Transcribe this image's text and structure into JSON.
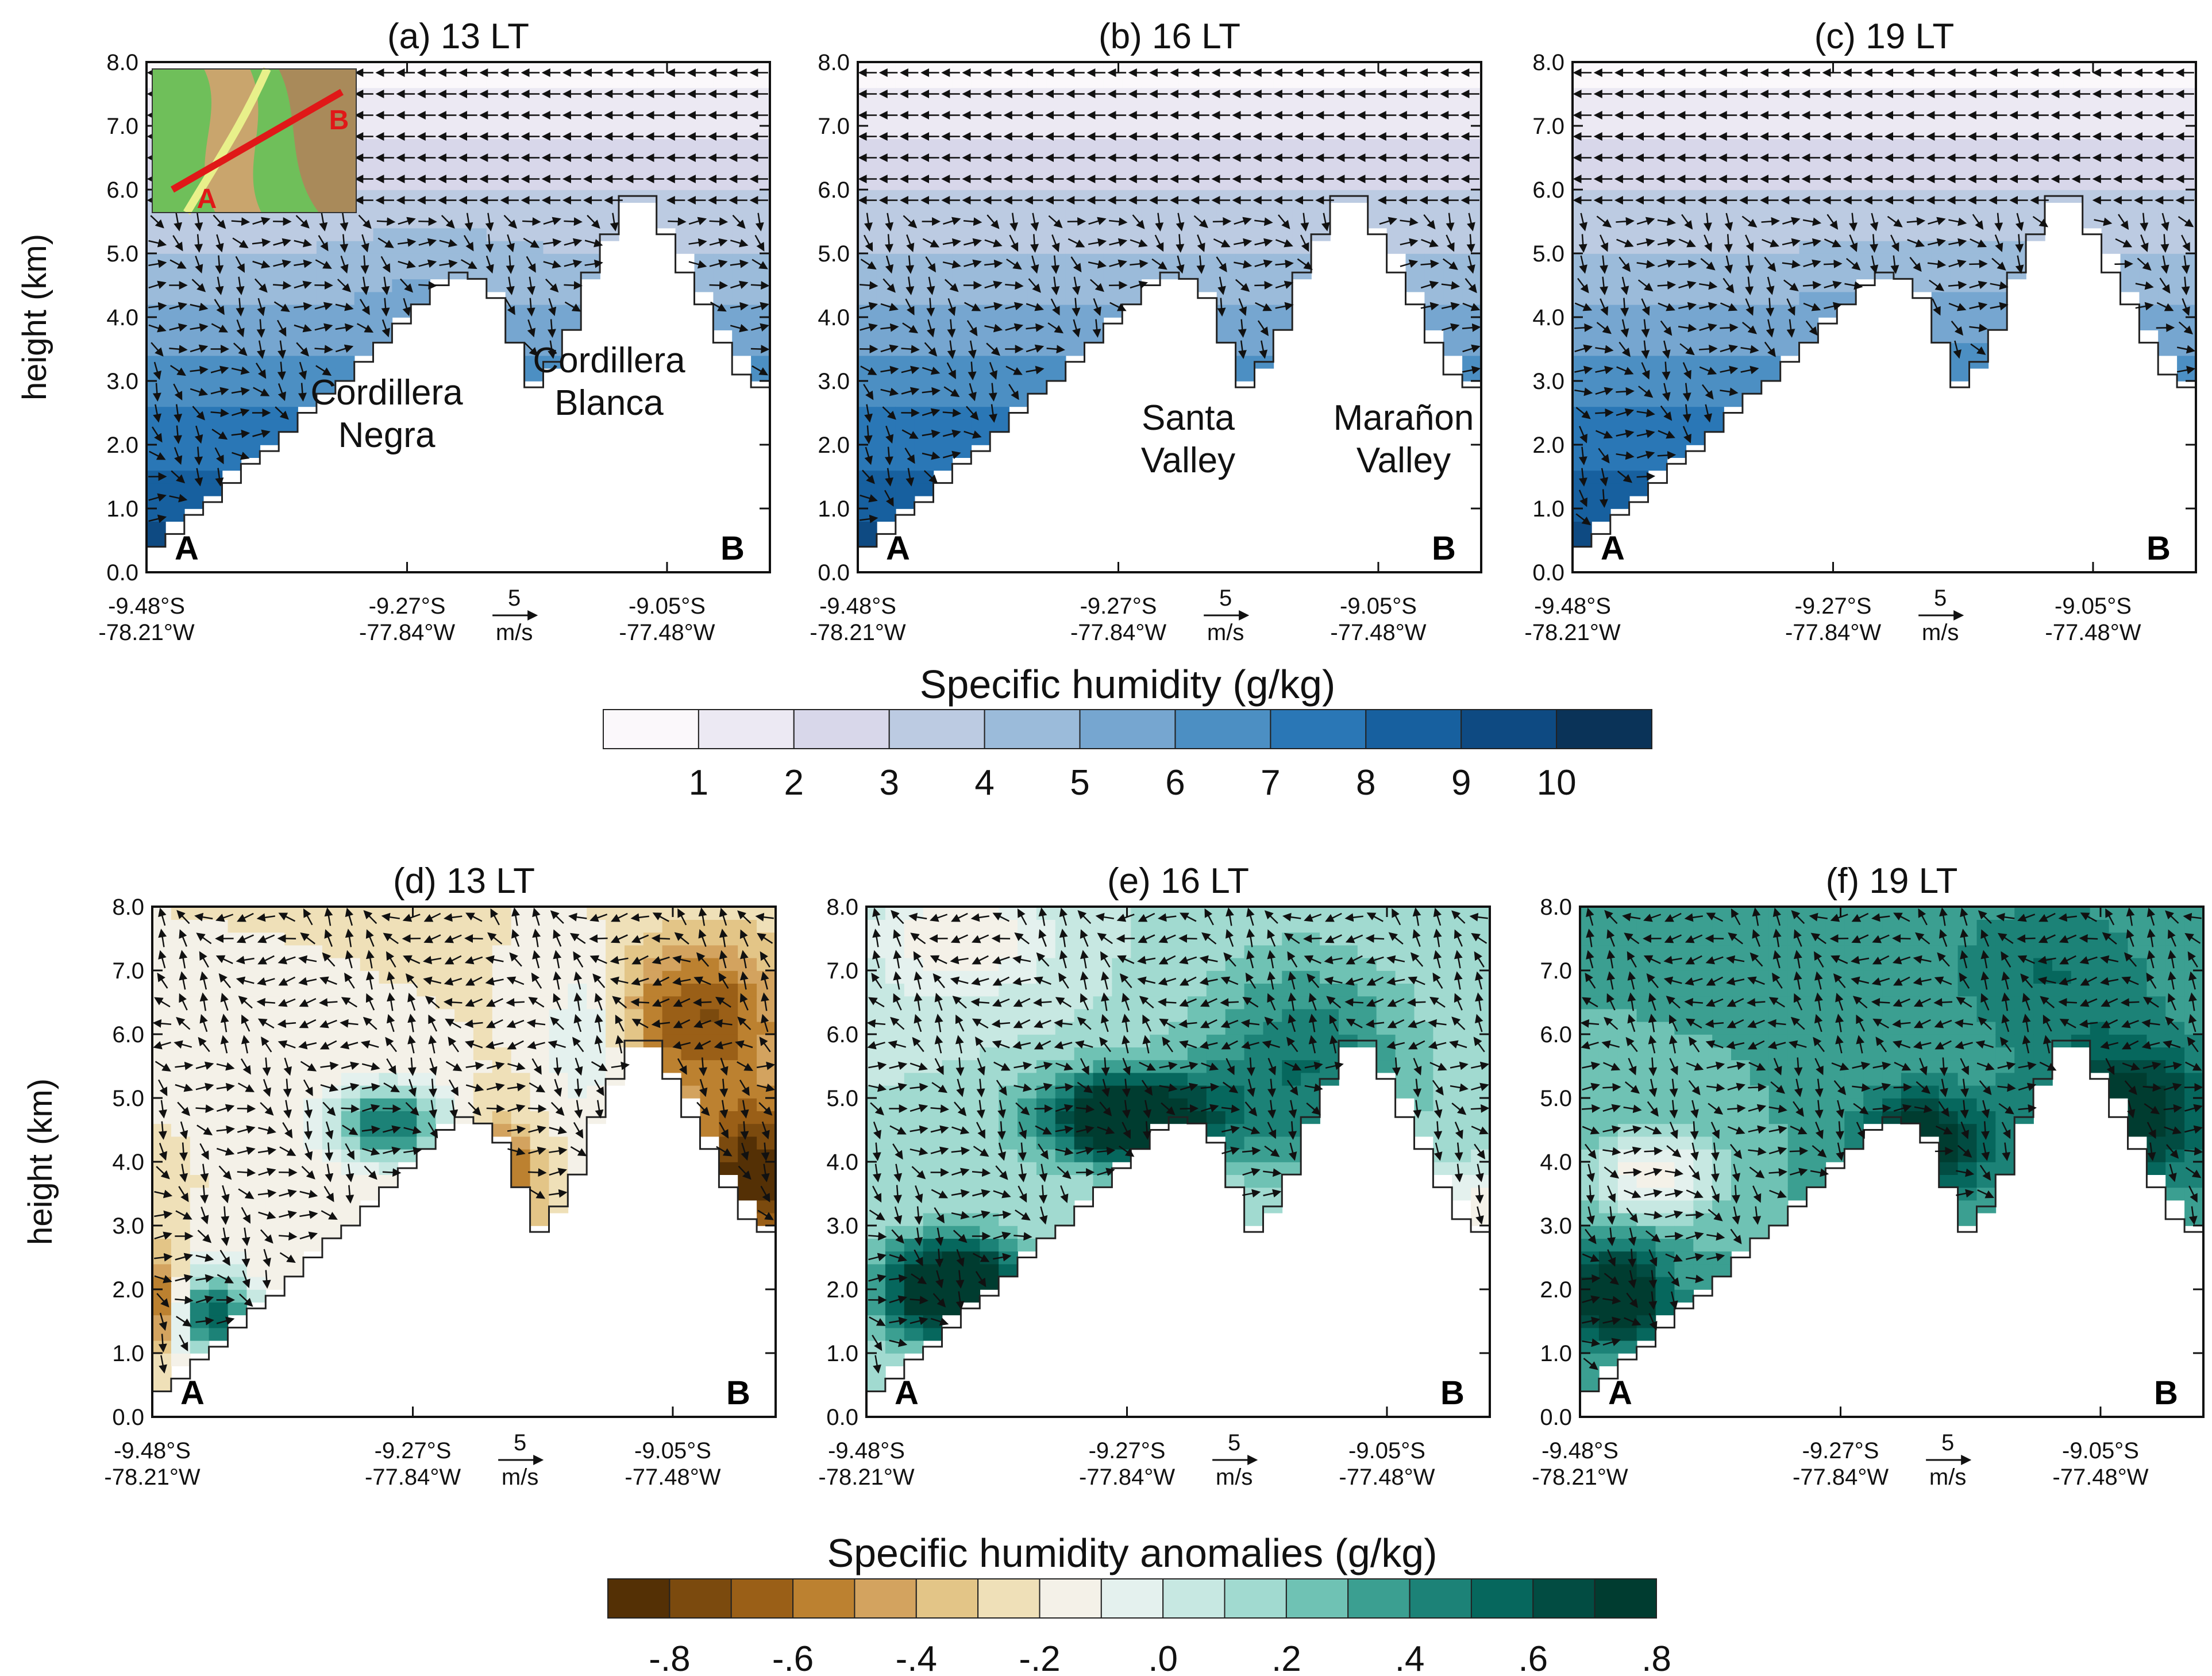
{
  "chart_data": [
    {
      "type": "heatmap",
      "panel": "a",
      "title": "(a) 13 LT",
      "ylabel": "height (km)",
      "ylim": [
        0,
        8
      ],
      "yticks": [
        "0.0",
        "1.0",
        "2.0",
        "3.0",
        "4.0",
        "5.0",
        "6.0",
        "7.0",
        "8.0"
      ],
      "xtick_labels": [
        [
          "-9.48°S",
          "-78.21°W"
        ],
        [
          "-9.27°S",
          "-77.84°W"
        ],
        [
          "-9.05°S",
          "-77.48°W"
        ]
      ],
      "vector_ref": {
        "value": "5",
        "unit": "m/s"
      },
      "end_labels": [
        "A",
        "B"
      ],
      "annotations": [
        "Cordillera",
        "Negra",
        "Cordillera",
        "Blanca"
      ],
      "variable": "Specific humidity (g/kg)"
    },
    {
      "type": "heatmap",
      "panel": "b",
      "title": "(b) 16 LT",
      "ylim": [
        0,
        8
      ],
      "yticks": [
        "0.0",
        "1.0",
        "2.0",
        "3.0",
        "4.0",
        "5.0",
        "6.0",
        "7.0",
        "8.0"
      ],
      "xtick_labels": [
        [
          "-9.48°S",
          "-78.21°W"
        ],
        [
          "-9.27°S",
          "-77.84°W"
        ],
        [
          "-9.05°S",
          "-77.48°W"
        ]
      ],
      "vector_ref": {
        "value": "5",
        "unit": "m/s"
      },
      "end_labels": [
        "A",
        "B"
      ],
      "annotations": [
        "Santa",
        "Valley",
        "Marañon",
        "Valley"
      ],
      "variable": "Specific humidity (g/kg)"
    },
    {
      "type": "heatmap",
      "panel": "c",
      "title": "(c) 19 LT",
      "ylim": [
        0,
        8
      ],
      "yticks": [
        "0.0",
        "1.0",
        "2.0",
        "3.0",
        "4.0",
        "5.0",
        "6.0",
        "7.0",
        "8.0"
      ],
      "xtick_labels": [
        [
          "-9.48°S",
          "-78.21°W"
        ],
        [
          "-9.27°S",
          "-77.84°W"
        ],
        [
          "-9.05°S",
          "-77.48°W"
        ]
      ],
      "vector_ref": {
        "value": "5",
        "unit": "m/s"
      },
      "end_labels": [
        "A",
        "B"
      ],
      "variable": "Specific humidity (g/kg)"
    },
    {
      "type": "heatmap",
      "panel": "d",
      "title": "(d) 13 LT",
      "ylabel": "height (km)",
      "ylim": [
        0,
        8
      ],
      "yticks": [
        "0.0",
        "1.0",
        "2.0",
        "3.0",
        "4.0",
        "5.0",
        "6.0",
        "7.0",
        "8.0"
      ],
      "xtick_labels": [
        [
          "-9.48°S",
          "-78.21°W"
        ],
        [
          "-9.27°S",
          "-77.84°W"
        ],
        [
          "-9.05°S",
          "-77.48°W"
        ]
      ],
      "vector_ref": {
        "value": "5",
        "unit": "m/s"
      },
      "end_labels": [
        "A",
        "B"
      ],
      "variable": "Specific humidity anomalies (g/kg)"
    },
    {
      "type": "heatmap",
      "panel": "e",
      "title": "(e) 16 LT",
      "ylim": [
        0,
        8
      ],
      "yticks": [
        "0.0",
        "1.0",
        "2.0",
        "3.0",
        "4.0",
        "5.0",
        "6.0",
        "7.0",
        "8.0"
      ],
      "xtick_labels": [
        [
          "-9.48°S",
          "-78.21°W"
        ],
        [
          "-9.27°S",
          "-77.84°W"
        ],
        [
          "-9.05°S",
          "-77.48°W"
        ]
      ],
      "vector_ref": {
        "value": "5",
        "unit": "m/s"
      },
      "end_labels": [
        "A",
        "B"
      ],
      "variable": "Specific humidity anomalies (g/kg)"
    },
    {
      "type": "heatmap",
      "panel": "f",
      "title": "(f) 19 LT",
      "ylim": [
        0,
        8
      ],
      "yticks": [
        "0.0",
        "1.0",
        "2.0",
        "3.0",
        "4.0",
        "5.0",
        "6.0",
        "7.0",
        "8.0"
      ],
      "xtick_labels": [
        [
          "-9.48°S",
          "-78.21°W"
        ],
        [
          "-9.27°S",
          "-77.84°W"
        ],
        [
          "-9.05°S",
          "-77.48°W"
        ]
      ],
      "vector_ref": {
        "value": "5",
        "unit": "m/s"
      },
      "end_labels": [
        "A",
        "B"
      ],
      "variable": "Specific humidity anomalies (g/kg)"
    }
  ],
  "terrain_km": [
    0.4,
    0.6,
    0.9,
    1.1,
    1.4,
    1.7,
    1.9,
    2.2,
    2.5,
    2.8,
    3.0,
    3.3,
    3.6,
    3.9,
    4.2,
    4.5,
    4.7,
    4.6,
    4.3,
    3.6,
    2.9,
    3.3,
    3.8,
    4.7,
    5.3,
    5.9,
    5.9,
    5.3,
    4.7,
    4.2,
    3.6,
    3.1,
    2.9
  ],
  "colorbar_humidity": {
    "title": "Specific humidity (g/kg)",
    "tick_labels": [
      "1",
      "2",
      "3",
      "4",
      "5",
      "6",
      "7",
      "8",
      "9",
      "10"
    ],
    "colors": [
      "#fbf8fb",
      "#ece9f3",
      "#d8d7ea",
      "#bccbe2",
      "#9bbbda",
      "#76a6d0",
      "#4c8fc3",
      "#2a77b6",
      "#17609f",
      "#0e4a82",
      "#0a3358"
    ]
  },
  "colorbar_anomaly": {
    "title": "Specific humidity anomalies (g/kg)",
    "tick_labels": [
      "-.8",
      "-.6",
      "-.4",
      "-.2",
      ".0",
      ".2",
      ".4",
      ".6",
      ".8"
    ],
    "colors": [
      "#543005",
      "#7b4a0e",
      "#9a5f17",
      "#bc8130",
      "#d3a35f",
      "#e3c587",
      "#efe0b8",
      "#f4f1e8",
      "#e4f1ee",
      "#c7e8e2",
      "#a1dad0",
      "#6fc2b4",
      "#3b9f91",
      "#1c8277",
      "#06675d",
      "#024c42",
      "#003c30"
    ]
  },
  "inset": {
    "label_start": "A",
    "label_end": "B"
  }
}
